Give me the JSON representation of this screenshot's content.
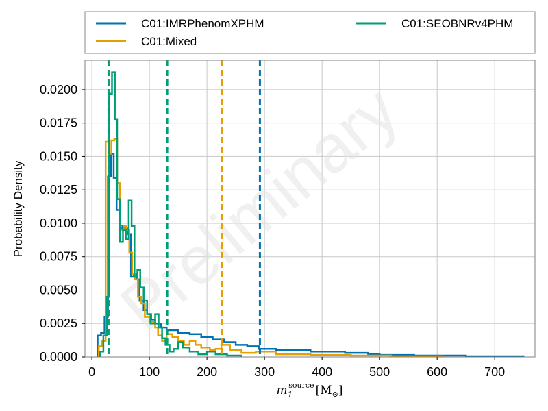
{
  "chart_data": {
    "type": "histogram",
    "watermark": "Preliminary",
    "ylabel": "Probability Density",
    "xlabel": "m_1^source [M_⊙]",
    "xlabel_main": "m",
    "xlabel_sub": "1",
    "xlabel_sup": "source",
    "xlabel_unit": "[M",
    "xlabel_unit_sub": "⊙",
    "xlabel_unit_close": "]",
    "xlim": [
      -12,
      770
    ],
    "ylim": [
      0,
      0.0222
    ],
    "grid": true,
    "legend_position": "top (above plot), 2 columns",
    "x_ticks": [
      0,
      100,
      200,
      300,
      400,
      500,
      600,
      700
    ],
    "x_tick_labels": [
      "0",
      "100",
      "200",
      "300",
      "400",
      "500",
      "600",
      "700"
    ],
    "y_ticks": [
      0.0,
      0.0025,
      0.005,
      0.0075,
      0.01,
      0.0125,
      0.015,
      0.0175,
      0.02
    ],
    "y_tick_labels": [
      "0.0000",
      "0.0025",
      "0.0050",
      "0.0075",
      "0.0100",
      "0.0125",
      "0.0150",
      "0.0175",
      "0.0200"
    ],
    "series": [
      {
        "name": "C01:IMRPhenomXPHM",
        "color": "#0072b2",
        "dashed_lines": [
          292
        ],
        "steps": [
          [
            10,
            0
          ],
          [
            10,
            0.0016
          ],
          [
            16,
            0.0016
          ],
          [
            16,
            0.0018
          ],
          [
            22,
            0.0018
          ],
          [
            22,
            0.003
          ],
          [
            28,
            0.003
          ],
          [
            28,
            0.0135
          ],
          [
            33,
            0.0135
          ],
          [
            33,
            0.0152
          ],
          [
            38,
            0.0152
          ],
          [
            38,
            0.0134
          ],
          [
            43,
            0.0134
          ],
          [
            43,
            0.011
          ],
          [
            48,
            0.011
          ],
          [
            48,
            0.0096
          ],
          [
            53,
            0.0096
          ],
          [
            53,
            0.0098
          ],
          [
            58,
            0.0098
          ],
          [
            58,
            0.0096
          ],
          [
            63,
            0.0096
          ],
          [
            63,
            0.0092
          ],
          [
            68,
            0.0092
          ],
          [
            68,
            0.006
          ],
          [
            73,
            0.006
          ],
          [
            73,
            0.0062
          ],
          [
            78,
            0.0062
          ],
          [
            78,
            0.0058
          ],
          [
            83,
            0.0058
          ],
          [
            83,
            0.0042
          ],
          [
            90,
            0.0042
          ],
          [
            90,
            0.0035
          ],
          [
            96,
            0.0035
          ],
          [
            96,
            0.0032
          ],
          [
            103,
            0.0032
          ],
          [
            103,
            0.0028
          ],
          [
            110,
            0.0028
          ],
          [
            110,
            0.0025
          ],
          [
            120,
            0.0025
          ],
          [
            120,
            0.0022
          ],
          [
            130,
            0.0022
          ],
          [
            130,
            0.002
          ],
          [
            150,
            0.002
          ],
          [
            150,
            0.0018
          ],
          [
            170,
            0.0018
          ],
          [
            170,
            0.0017
          ],
          [
            190,
            0.0017
          ],
          [
            190,
            0.0015
          ],
          [
            210,
            0.0015
          ],
          [
            210,
            0.0013
          ],
          [
            230,
            0.0013
          ],
          [
            230,
            0.0011
          ],
          [
            250,
            0.0011
          ],
          [
            250,
            0.0009
          ],
          [
            270,
            0.0009
          ],
          [
            270,
            0.0008
          ],
          [
            290,
            0.0008
          ],
          [
            290,
            0.0006
          ],
          [
            320,
            0.0006
          ],
          [
            320,
            0.0005
          ],
          [
            380,
            0.0005
          ],
          [
            380,
            0.0004
          ],
          [
            440,
            0.0004
          ],
          [
            440,
            0.0003
          ],
          [
            480,
            0.0003
          ],
          [
            480,
            0.0002
          ],
          [
            500,
            0.0002
          ],
          [
            500,
            0.00015
          ],
          [
            560,
            0.00015
          ],
          [
            560,
            0.0001
          ],
          [
            650,
            0.0001
          ],
          [
            650,
            5e-05
          ],
          [
            750,
            5e-05
          ],
          [
            750,
            0
          ]
        ]
      },
      {
        "name": "C01:Mixed",
        "color": "#e69f00",
        "dashed_lines": [
          226
        ],
        "steps": [
          [
            12,
            0
          ],
          [
            12,
            0.0008
          ],
          [
            18,
            0.0008
          ],
          [
            18,
            0.0012
          ],
          [
            24,
            0.0012
          ],
          [
            24,
            0.0161
          ],
          [
            29,
            0.0161
          ],
          [
            29,
            0.0152
          ],
          [
            34,
            0.0152
          ],
          [
            34,
            0.0162
          ],
          [
            39,
            0.0162
          ],
          [
            39,
            0.0163
          ],
          [
            44,
            0.0163
          ],
          [
            44,
            0.013
          ],
          [
            49,
            0.013
          ],
          [
            49,
            0.0095
          ],
          [
            55,
            0.0095
          ],
          [
            55,
            0.0098
          ],
          [
            60,
            0.0098
          ],
          [
            60,
            0.0095
          ],
          [
            65,
            0.0095
          ],
          [
            65,
            0.0078
          ],
          [
            70,
            0.0078
          ],
          [
            70,
            0.0062
          ],
          [
            75,
            0.0062
          ],
          [
            75,
            0.0058
          ],
          [
            80,
            0.0058
          ],
          [
            80,
            0.0045
          ],
          [
            86,
            0.0045
          ],
          [
            86,
            0.004
          ],
          [
            92,
            0.004
          ],
          [
            92,
            0.003
          ],
          [
            100,
            0.003
          ],
          [
            100,
            0.0026
          ],
          [
            110,
            0.0026
          ],
          [
            110,
            0.0022
          ],
          [
            115,
            0.0022
          ],
          [
            115,
            0.0016
          ],
          [
            122,
            0.0016
          ],
          [
            122,
            0.0012
          ],
          [
            130,
            0.0012
          ],
          [
            130,
            0.0017
          ],
          [
            140,
            0.0017
          ],
          [
            140,
            0.0015
          ],
          [
            150,
            0.0015
          ],
          [
            150,
            0.0012
          ],
          [
            160,
            0.0012
          ],
          [
            160,
            0.0009
          ],
          [
            170,
            0.0009
          ],
          [
            170,
            0.0012
          ],
          [
            180,
            0.0012
          ],
          [
            180,
            0.0009
          ],
          [
            190,
            0.0009
          ],
          [
            190,
            0.0007
          ],
          [
            205,
            0.0007
          ],
          [
            205,
            0.0005
          ],
          [
            215,
            0.0005
          ],
          [
            215,
            0.0006
          ],
          [
            225,
            0.0006
          ],
          [
            225,
            0.0009
          ],
          [
            240,
            0.0009
          ],
          [
            240,
            0.0005
          ],
          [
            260,
            0.0005
          ],
          [
            260,
            0.0003
          ],
          [
            285,
            0.0003
          ],
          [
            285,
            0.0004
          ],
          [
            320,
            0.0004
          ],
          [
            320,
            0.0002
          ],
          [
            380,
            0.0002
          ],
          [
            380,
            0.00015
          ],
          [
            450,
            0.00015
          ],
          [
            450,
            0.0001
          ],
          [
            520,
            0.0001
          ],
          [
            520,
            5e-05
          ],
          [
            610,
            5e-05
          ],
          [
            610,
            0
          ]
        ]
      },
      {
        "name": "C01:SEOBNRv4PHM",
        "color": "#009e73",
        "dashed_lines": [
          29,
          131
        ],
        "steps": [
          [
            14,
            0
          ],
          [
            14,
            0.0004
          ],
          [
            20,
            0.0004
          ],
          [
            20,
            0.0016
          ],
          [
            26,
            0.0016
          ],
          [
            26,
            0.0045
          ],
          [
            30,
            0.0045
          ],
          [
            30,
            0.0197
          ],
          [
            35,
            0.0197
          ],
          [
            35,
            0.0213
          ],
          [
            40,
            0.0213
          ],
          [
            40,
            0.0178
          ],
          [
            44,
            0.0178
          ],
          [
            44,
            0.0118
          ],
          [
            49,
            0.0118
          ],
          [
            49,
            0.0086
          ],
          [
            54,
            0.0086
          ],
          [
            54,
            0.0095
          ],
          [
            59,
            0.0095
          ],
          [
            59,
            0.0088
          ],
          [
            64,
            0.0088
          ],
          [
            64,
            0.0117
          ],
          [
            69,
            0.0117
          ],
          [
            69,
            0.0098
          ],
          [
            74,
            0.0098
          ],
          [
            74,
            0.006
          ],
          [
            79,
            0.006
          ],
          [
            79,
            0.0065
          ],
          [
            84,
            0.0065
          ],
          [
            84,
            0.0052
          ],
          [
            90,
            0.0052
          ],
          [
            90,
            0.0042
          ],
          [
            96,
            0.0042
          ],
          [
            96,
            0.0032
          ],
          [
            102,
            0.0032
          ],
          [
            102,
            0.0025
          ],
          [
            110,
            0.0025
          ],
          [
            110,
            0.0032
          ],
          [
            116,
            0.0032
          ],
          [
            116,
            0.0022
          ],
          [
            122,
            0.0022
          ],
          [
            122,
            0.0014
          ],
          [
            128,
            0.0014
          ],
          [
            128,
            0.0009
          ],
          [
            135,
            0.0009
          ],
          [
            135,
            0.0004
          ],
          [
            142,
            0.0004
          ],
          [
            142,
            0.0006
          ],
          [
            150,
            0.0006
          ],
          [
            150,
            0.0011
          ],
          [
            158,
            0.0011
          ],
          [
            158,
            0.0007
          ],
          [
            170,
            0.0007
          ],
          [
            170,
            0.0004
          ],
          [
            185,
            0.0004
          ],
          [
            185,
            0.0002
          ],
          [
            200,
            0.0002
          ],
          [
            200,
            0.0004
          ],
          [
            215,
            0.0004
          ],
          [
            215,
            0.0002
          ],
          [
            235,
            0.0002
          ],
          [
            235,
            0.0001
          ],
          [
            260,
            0.0001
          ],
          [
            260,
            0
          ]
        ]
      }
    ]
  }
}
